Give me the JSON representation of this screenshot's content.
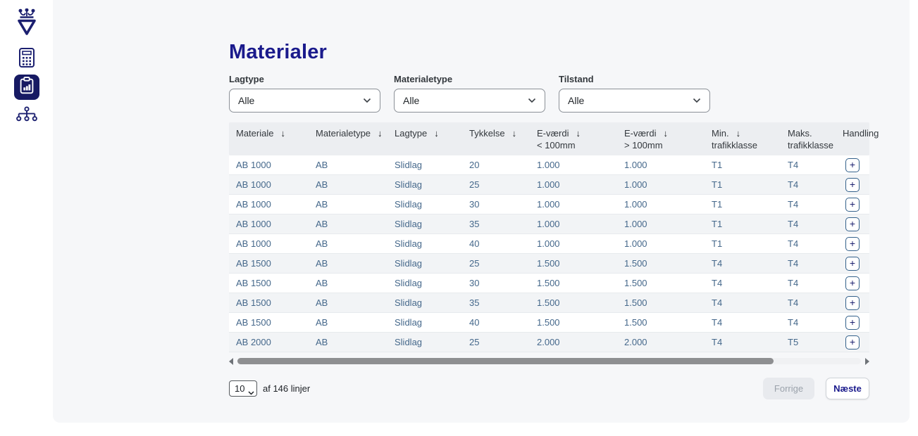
{
  "page": {
    "title": "Materialer"
  },
  "sidebar": {
    "logo_name": "vejdirektoratet-crown-logo",
    "items": [
      {
        "id": "calculator",
        "icon": "calculator-icon",
        "active": false
      },
      {
        "id": "report",
        "icon": "clipboard-chart-icon",
        "active": true
      },
      {
        "id": "hierarchy",
        "icon": "org-chart-icon",
        "active": false
      }
    ]
  },
  "filters": [
    {
      "id": "lagtype",
      "label": "Lagtype",
      "value": "Alle"
    },
    {
      "id": "materialetype",
      "label": "Materialetype",
      "value": "Alle"
    },
    {
      "id": "tilstand",
      "label": "Tilstand",
      "value": "Alle"
    }
  ],
  "table": {
    "columns": [
      {
        "id": "materiale",
        "label": "Materiale",
        "label2": "",
        "sortable": true
      },
      {
        "id": "materialetype",
        "label": "Materialetype",
        "label2": "",
        "sortable": true
      },
      {
        "id": "lagtype",
        "label": "Lagtype",
        "label2": "",
        "sortable": true
      },
      {
        "id": "tykkelse",
        "label": "Tykkelse",
        "label2": "",
        "sortable": true
      },
      {
        "id": "evaerdi-under-100",
        "label": "E-værdi",
        "label2": "< 100mm",
        "sortable": true
      },
      {
        "id": "evaerdi-over-100",
        "label": "E-værdi",
        "label2": "> 100mm",
        "sortable": true
      },
      {
        "id": "min-trafikklasse",
        "label": "Min.",
        "label2": "trafikklasse",
        "sortable": true
      },
      {
        "id": "maks-trafikklasse",
        "label": "Maks.",
        "label2": "trafikklasse",
        "sortable": false
      },
      {
        "id": "handling",
        "label": "Handling",
        "label2": "",
        "sortable": false
      }
    ],
    "sort_icon": "↓",
    "action_label": "+",
    "rows": [
      [
        "AB 1000",
        "AB",
        "Slidlag",
        "20",
        "1.000",
        "1.000",
        "T1",
        "T4"
      ],
      [
        "AB 1000",
        "AB",
        "Slidlag",
        "25",
        "1.000",
        "1.000",
        "T1",
        "T4"
      ],
      [
        "AB 1000",
        "AB",
        "Slidlag",
        "30",
        "1.000",
        "1.000",
        "T1",
        "T4"
      ],
      [
        "AB 1000",
        "AB",
        "Slidlag",
        "35",
        "1.000",
        "1.000",
        "T1",
        "T4"
      ],
      [
        "AB 1000",
        "AB",
        "Slidlag",
        "40",
        "1.000",
        "1.000",
        "T1",
        "T4"
      ],
      [
        "AB 1500",
        "AB",
        "Slidlag",
        "25",
        "1.500",
        "1.500",
        "T4",
        "T4"
      ],
      [
        "AB 1500",
        "AB",
        "Slidlag",
        "30",
        "1.500",
        "1.500",
        "T4",
        "T4"
      ],
      [
        "AB 1500",
        "AB",
        "Slidlag",
        "35",
        "1.500",
        "1.500",
        "T4",
        "T4"
      ],
      [
        "AB 1500",
        "AB",
        "Slidlag",
        "40",
        "1.500",
        "1.500",
        "T4",
        "T4"
      ],
      [
        "AB 2000",
        "AB",
        "Slidlag",
        "25",
        "2.000",
        "2.000",
        "T4",
        "T5"
      ]
    ]
  },
  "pagination": {
    "page_size": "10",
    "total_label": "af 146 linjer",
    "prev_label": "Forrige",
    "next_label": "Næste"
  },
  "colors": {
    "brand_navy": "#1a1a8c",
    "icon_navy": "#1c2070",
    "cell_blue": "#45688b",
    "panel_bg": "#f6f7f9",
    "header_bg": "#eceef1",
    "alt_row_bg": "#f2f4f6",
    "scroll_thumb": "#8e8f91"
  }
}
